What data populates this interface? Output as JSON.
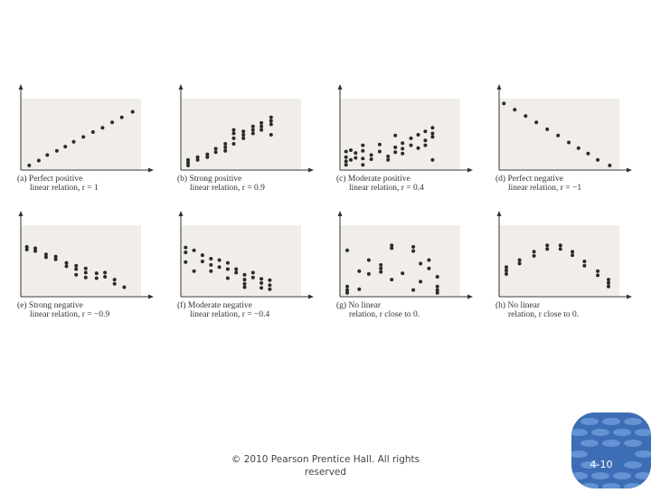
{
  "chart_data": [
    {
      "id": "a",
      "type": "scatter",
      "caption_line1": "(a) Perfect positive",
      "caption_line2": "linear relation, r = 1",
      "points": [
        [
          0.7,
          0.4
        ],
        [
          1.5,
          1.1
        ],
        [
          2.2,
          1.9
        ],
        [
          3.0,
          2.5
        ],
        [
          3.7,
          3.1
        ],
        [
          4.4,
          3.8
        ],
        [
          5.2,
          4.5
        ],
        [
          6.0,
          5.2
        ],
        [
          6.8,
          5.8
        ],
        [
          7.6,
          6.6
        ],
        [
          8.4,
          7.3
        ],
        [
          9.3,
          8.1
        ]
      ]
    },
    {
      "id": "b",
      "type": "scatter",
      "caption_line1": "(b) Strong positive",
      "caption_line2": "linear relation, r = 0.9",
      "points": [
        [
          0.6,
          0.4
        ],
        [
          0.6,
          0.8
        ],
        [
          0.6,
          1.2
        ],
        [
          1.4,
          1.2
        ],
        [
          1.4,
          1.6
        ],
        [
          2.2,
          1.6
        ],
        [
          2.2,
          2.0
        ],
        [
          2.9,
          2.3
        ],
        [
          2.9,
          2.8
        ],
        [
          3.7,
          2.5
        ],
        [
          3.7,
          3.0
        ],
        [
          3.7,
          3.5
        ],
        [
          4.4,
          3.5
        ],
        [
          4.4,
          4.3
        ],
        [
          4.4,
          5.0
        ],
        [
          4.4,
          5.5
        ],
        [
          5.2,
          4.3
        ],
        [
          5.2,
          4.8
        ],
        [
          5.2,
          5.3
        ],
        [
          6.0,
          5.0
        ],
        [
          6.0,
          5.5
        ],
        [
          6.0,
          6.0
        ],
        [
          6.7,
          5.5
        ],
        [
          6.7,
          6.0
        ],
        [
          6.7,
          6.5
        ],
        [
          7.5,
          4.8
        ],
        [
          7.5,
          6.3
        ],
        [
          7.5,
          6.8
        ],
        [
          7.5,
          7.3
        ]
      ]
    },
    {
      "id": "c",
      "type": "scatter",
      "caption_line1": "(c) Moderate positive",
      "caption_line2": "linear relation, r = 0.4",
      "points": [
        [
          0.5,
          0.5
        ],
        [
          0.5,
          1.0
        ],
        [
          0.5,
          1.6
        ],
        [
          0.5,
          2.4
        ],
        [
          0.9,
          1.2
        ],
        [
          0.9,
          2.6
        ],
        [
          1.3,
          1.5
        ],
        [
          1.3,
          2.2
        ],
        [
          1.9,
          0.5
        ],
        [
          1.9,
          1.4
        ],
        [
          1.9,
          2.5
        ],
        [
          1.9,
          3.3
        ],
        [
          2.6,
          1.3
        ],
        [
          2.6,
          1.9
        ],
        [
          3.3,
          2.4
        ],
        [
          3.3,
          3.4
        ],
        [
          4.0,
          1.2
        ],
        [
          4.0,
          1.7
        ],
        [
          4.6,
          2.3
        ],
        [
          4.6,
          3.0
        ],
        [
          4.6,
          4.7
        ],
        [
          5.2,
          2.1
        ],
        [
          5.2,
          2.8
        ],
        [
          5.2,
          3.6
        ],
        [
          5.9,
          3.3
        ],
        [
          5.9,
          4.3
        ],
        [
          6.5,
          2.9
        ],
        [
          6.5,
          4.8
        ],
        [
          7.1,
          3.3
        ],
        [
          7.1,
          4.0
        ],
        [
          7.1,
          5.3
        ],
        [
          7.7,
          1.2
        ],
        [
          7.7,
          4.5
        ],
        [
          7.7,
          5.0
        ],
        [
          7.7,
          5.8
        ]
      ]
    },
    {
      "id": "d",
      "type": "scatter",
      "caption_line1": "(d) Perfect negative",
      "caption_line2": "linear relation, r = −1",
      "points": [
        [
          0.4,
          9.3
        ],
        [
          1.3,
          8.4
        ],
        [
          2.2,
          7.5
        ],
        [
          3.1,
          6.6
        ],
        [
          4.0,
          5.6
        ],
        [
          4.9,
          4.7
        ],
        [
          5.8,
          3.7
        ],
        [
          6.6,
          2.9
        ],
        [
          7.4,
          2.1
        ],
        [
          8.2,
          1.2
        ],
        [
          9.2,
          0.4
        ]
      ]
    },
    {
      "id": "e",
      "type": "scatter",
      "caption_line1": "(e) Strong negative",
      "caption_line2": "linear relation, r = −0.9",
      "points": [
        [
          0.5,
          6.5
        ],
        [
          0.5,
          6.9
        ],
        [
          1.2,
          6.3
        ],
        [
          1.2,
          6.7
        ],
        [
          2.1,
          5.4
        ],
        [
          2.1,
          5.8
        ],
        [
          2.9,
          5.1
        ],
        [
          2.9,
          5.5
        ],
        [
          3.8,
          4.1
        ],
        [
          3.8,
          4.6
        ],
        [
          4.6,
          3.7
        ],
        [
          4.6,
          4.2
        ],
        [
          4.6,
          2.9
        ],
        [
          5.4,
          2.5
        ],
        [
          5.4,
          3.2
        ],
        [
          5.4,
          3.8
        ],
        [
          6.3,
          2.4
        ],
        [
          6.3,
          3.1
        ],
        [
          7.0,
          2.6
        ],
        [
          7.0,
          3.2
        ],
        [
          7.8,
          1.6
        ],
        [
          7.8,
          2.2
        ],
        [
          8.6,
          1.1
        ]
      ]
    },
    {
      "id": "f",
      "type": "scatter",
      "caption_line1": "(f) Moderate negative",
      "caption_line2": "linear relation, r = −0.4",
      "points": [
        [
          0.4,
          6.8
        ],
        [
          0.4,
          6.1
        ],
        [
          0.4,
          4.7
        ],
        [
          1.1,
          6.4
        ],
        [
          1.1,
          3.4
        ],
        [
          1.8,
          5.7
        ],
        [
          1.8,
          4.8
        ],
        [
          2.5,
          5.2
        ],
        [
          2.5,
          4.3
        ],
        [
          2.5,
          3.4
        ],
        [
          3.2,
          5.0
        ],
        [
          3.2,
          4.0
        ],
        [
          3.9,
          4.6
        ],
        [
          3.9,
          3.7
        ],
        [
          3.9,
          2.4
        ],
        [
          4.6,
          3.7
        ],
        [
          4.6,
          3.2
        ],
        [
          5.3,
          2.9
        ],
        [
          5.3,
          2.2
        ],
        [
          5.3,
          1.6
        ],
        [
          5.3,
          1.1
        ],
        [
          6.0,
          3.2
        ],
        [
          6.0,
          2.5
        ],
        [
          6.7,
          2.3
        ],
        [
          6.7,
          1.7
        ],
        [
          6.7,
          1.0
        ],
        [
          7.4,
          2.1
        ],
        [
          7.4,
          1.4
        ],
        [
          7.4,
          0.8
        ]
      ]
    },
    {
      "id": "g",
      "type": "scatter",
      "caption_line1": "(g) No linear",
      "caption_line2": "relation, r close to 0.",
      "points": [
        [
          0.6,
          6.4
        ],
        [
          0.6,
          1.2
        ],
        [
          0.6,
          0.7
        ],
        [
          0.6,
          0.3
        ],
        [
          1.6,
          3.4
        ],
        [
          1.6,
          0.8
        ],
        [
          2.4,
          5.0
        ],
        [
          2.4,
          3.0
        ],
        [
          3.4,
          4.3
        ],
        [
          3.4,
          3.8
        ],
        [
          3.4,
          3.3
        ],
        [
          4.3,
          7.1
        ],
        [
          4.3,
          6.7
        ],
        [
          4.3,
          2.2
        ],
        [
          5.2,
          3.1
        ],
        [
          6.1,
          6.3
        ],
        [
          6.1,
          6.9
        ],
        [
          6.1,
          0.7
        ],
        [
          6.7,
          1.9
        ],
        [
          6.7,
          4.5
        ],
        [
          7.4,
          5.0
        ],
        [
          7.4,
          3.8
        ],
        [
          8.1,
          2.6
        ],
        [
          8.1,
          1.2
        ],
        [
          8.1,
          0.7
        ],
        [
          8.1,
          0.3
        ]
      ]
    },
    {
      "id": "h",
      "type": "scatter",
      "caption_line1": "(h) No linear",
      "caption_line2": "relation, r close to 0.",
      "points": [
        [
          0.6,
          3.0
        ],
        [
          0.6,
          3.5
        ],
        [
          0.6,
          4.0
        ],
        [
          1.7,
          4.5
        ],
        [
          1.7,
          5.0
        ],
        [
          2.9,
          5.6
        ],
        [
          2.9,
          6.2
        ],
        [
          4.0,
          6.6
        ],
        [
          4.0,
          7.1
        ],
        [
          5.1,
          6.6
        ],
        [
          5.1,
          7.1
        ],
        [
          6.1,
          6.2
        ],
        [
          6.1,
          5.7
        ],
        [
          7.1,
          4.8
        ],
        [
          7.1,
          4.2
        ],
        [
          8.2,
          3.4
        ],
        [
          8.2,
          2.8
        ],
        [
          9.1,
          2.2
        ],
        [
          9.1,
          1.7
        ],
        [
          9.1,
          1.2
        ]
      ]
    }
  ],
  "footer": {
    "copyright_line1": "© 2010 Pearson Prentice Hall. All rights",
    "copyright_line2": "reserved"
  },
  "page_number": "4-10",
  "colors": {
    "plot_bg": "#f1eeea",
    "dot": "#2b2b2b",
    "axis": "#333333",
    "badge": "#3d6db4",
    "badge_light": "#5e8fd3"
  }
}
